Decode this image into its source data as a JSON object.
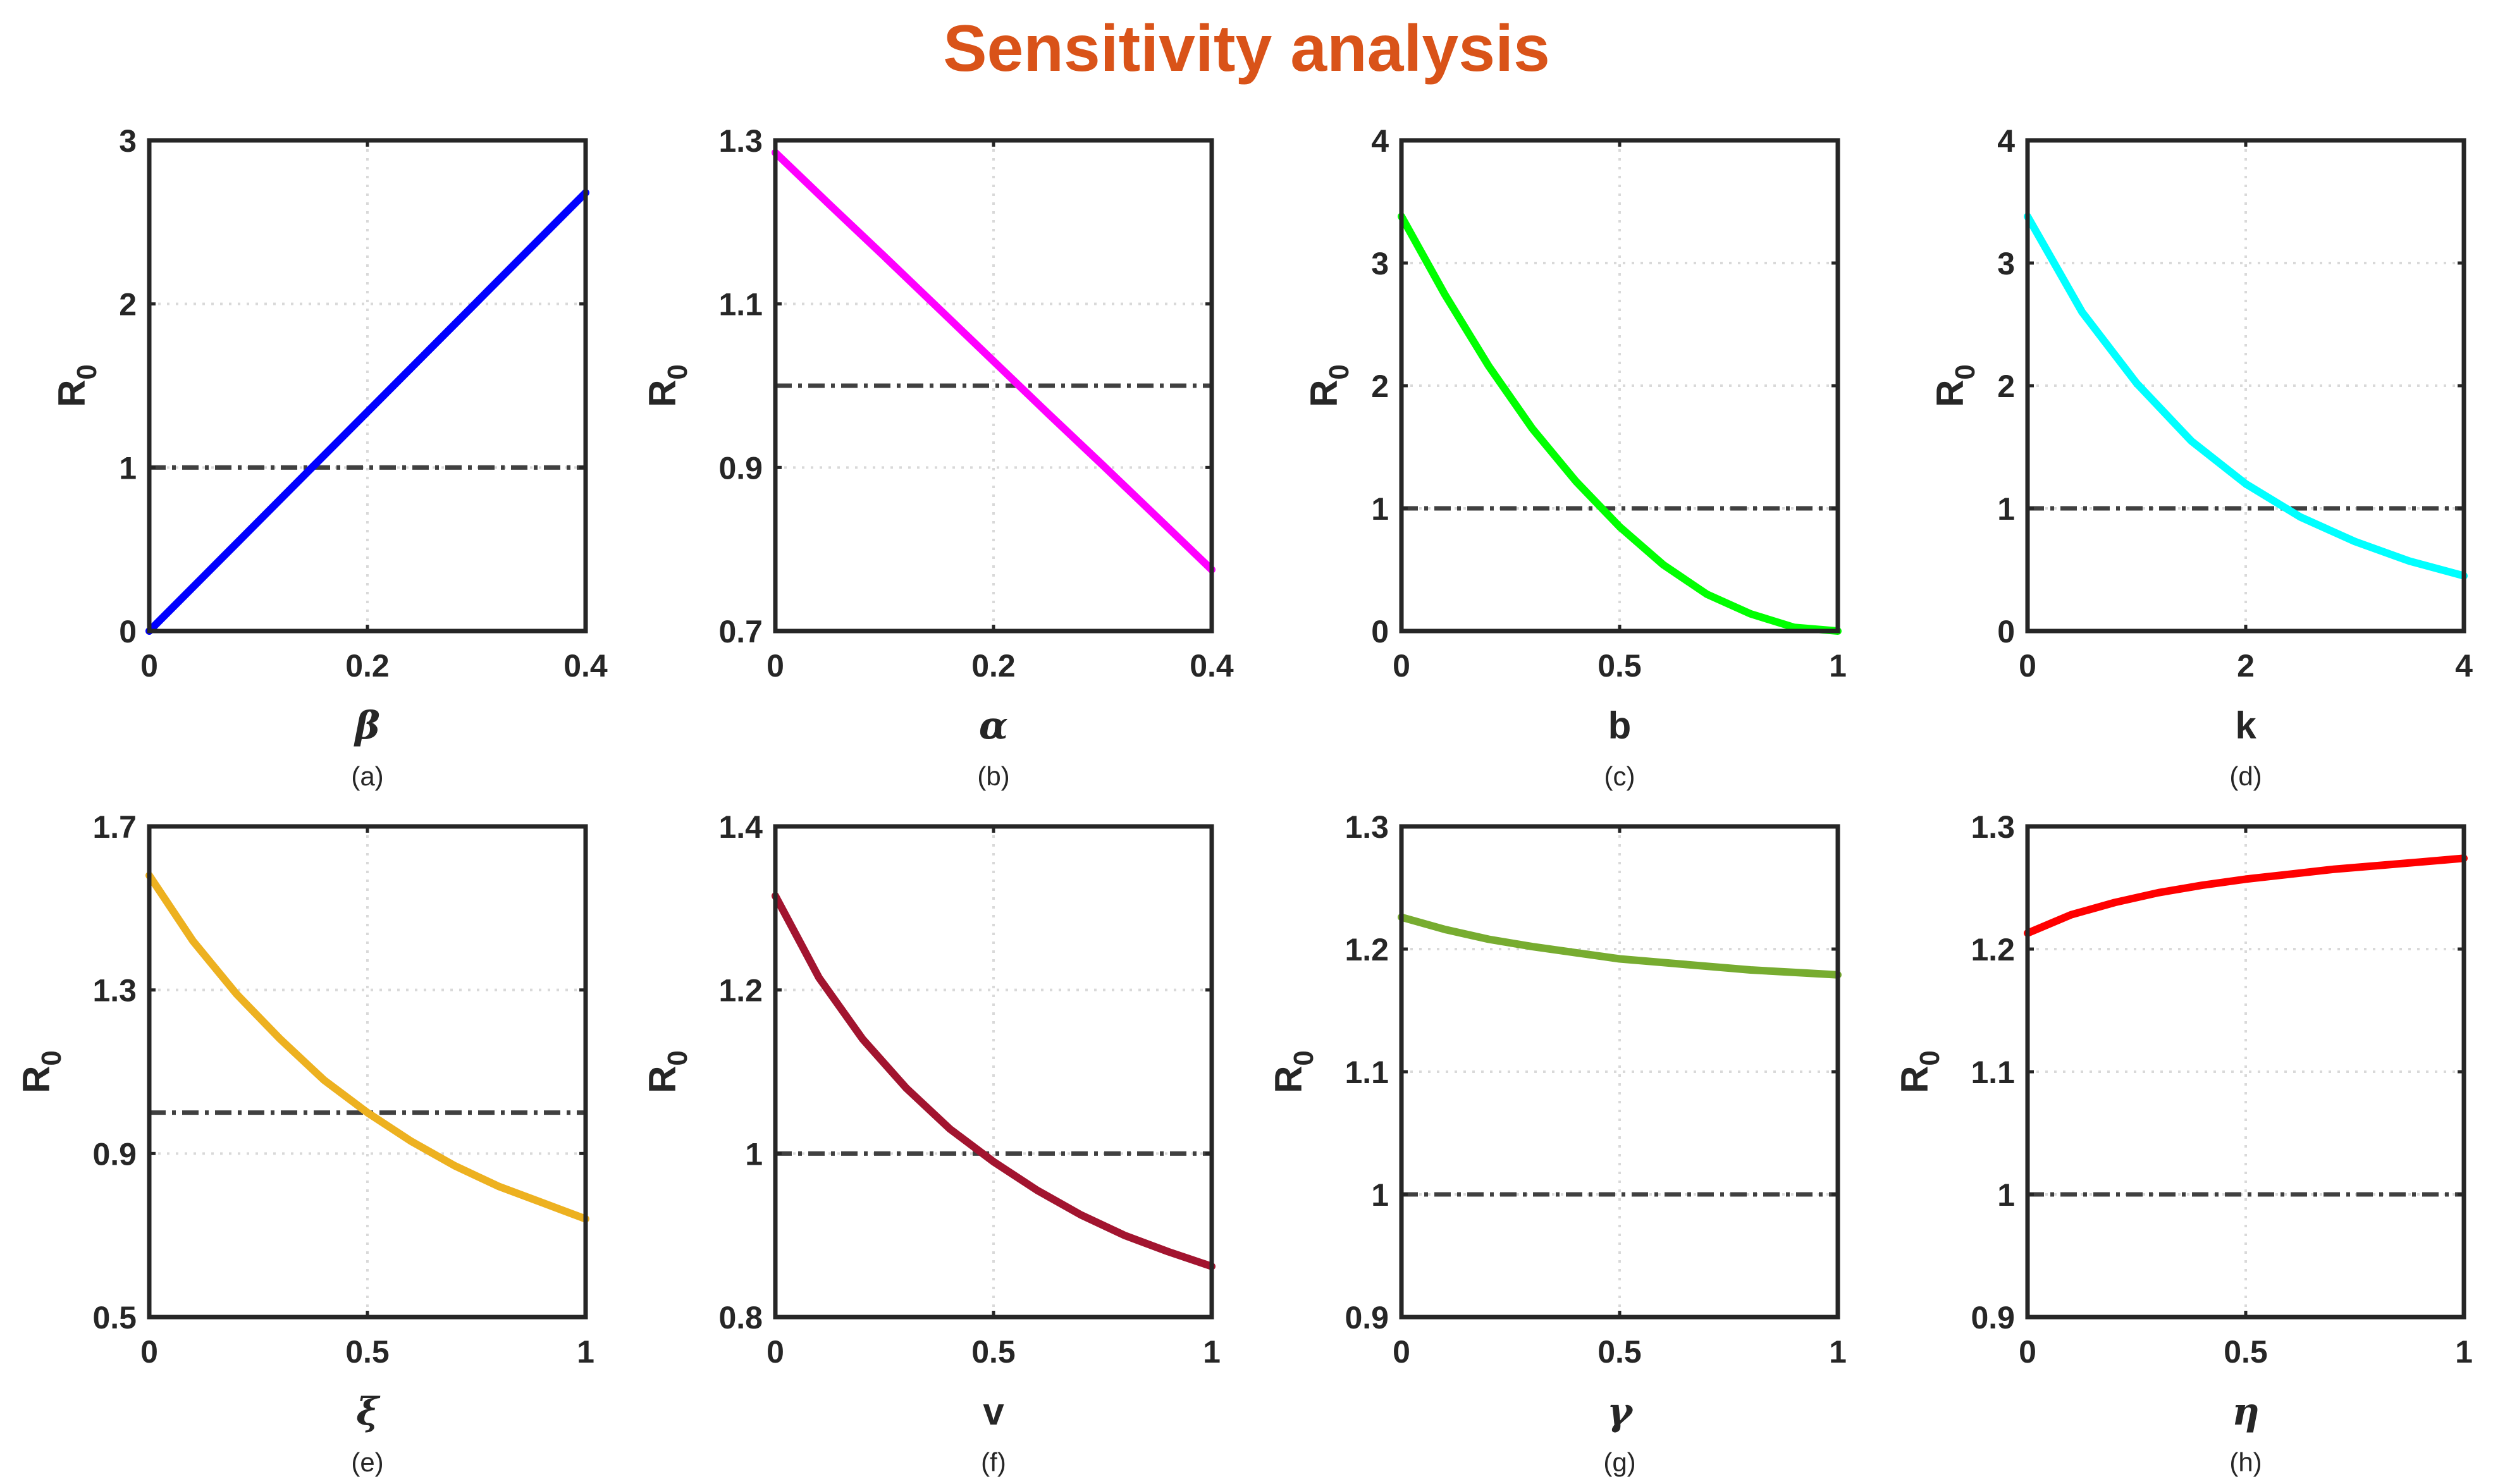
{
  "title": "Sensitivity analysis",
  "ylabel": "R",
  "ylabel_sub": "0",
  "colors": {
    "title": "#D95319",
    "threshold": "#404040",
    "grid": "#d9d9d9",
    "axes": "#262626"
  },
  "chart_data": [
    {
      "type": "line",
      "caption": "(a)",
      "xlabel": "β",
      "xlabel_italic": true,
      "color": "#0000FF",
      "xlim": [
        0,
        0.4
      ],
      "ylim": [
        0,
        3
      ],
      "xticks": [
        0,
        0.2,
        0.4
      ],
      "yticks": [
        0,
        1,
        2,
        3
      ],
      "xtick_labels": [
        "0",
        "0.2",
        "0.4"
      ],
      "ytick_labels": [
        "0",
        "1",
        "2",
        "3"
      ],
      "threshold": 1,
      "x": [
        0,
        0.05,
        0.1,
        0.15,
        0.2,
        0.25,
        0.3,
        0.35,
        0.4
      ],
      "y": [
        0,
        0.335,
        0.67,
        1.005,
        1.34,
        1.675,
        2.01,
        2.345,
        2.68
      ]
    },
    {
      "type": "line",
      "caption": "(b)",
      "xlabel": "α",
      "xlabel_italic": true,
      "color": "#FF00FF",
      "xlim": [
        0,
        0.4
      ],
      "ylim": [
        0.7,
        1.3
      ],
      "xticks": [
        0,
        0.2,
        0.4
      ],
      "yticks": [
        0.7,
        0.9,
        1.1,
        1.3
      ],
      "xtick_labels": [
        "0",
        "0.2",
        "0.4"
      ],
      "ytick_labels": [
        "0.7",
        "0.9",
        "1.1",
        "1.3"
      ],
      "threshold": 1,
      "x": [
        0,
        0.05,
        0.1,
        0.15,
        0.2,
        0.25,
        0.3,
        0.35,
        0.4
      ],
      "y": [
        1.285,
        1.221,
        1.158,
        1.094,
        1.03,
        0.966,
        0.903,
        0.839,
        0.775
      ]
    },
    {
      "type": "line",
      "caption": "(c)",
      "xlabel": "b",
      "xlabel_italic": false,
      "color": "#00FF00",
      "xlim": [
        0,
        1
      ],
      "ylim": [
        0,
        4
      ],
      "xticks": [
        0,
        0.5,
        1
      ],
      "yticks": [
        0,
        1,
        2,
        3,
        4
      ],
      "xtick_labels": [
        "0",
        "0.5",
        "1"
      ],
      "ytick_labels": [
        "0",
        "1",
        "2",
        "3",
        "4"
      ],
      "threshold": 1,
      "x": [
        0,
        0.1,
        0.2,
        0.3,
        0.4,
        0.5,
        0.6,
        0.7,
        0.8,
        0.9,
        1
      ],
      "y": [
        3.38,
        2.74,
        2.16,
        1.65,
        1.22,
        0.85,
        0.54,
        0.3,
        0.14,
        0.03,
        0
      ]
    },
    {
      "type": "line",
      "caption": "(d)",
      "xlabel": "k",
      "xlabel_italic": false,
      "color": "#00FFFF",
      "xlim": [
        0,
        4
      ],
      "ylim": [
        0,
        4
      ],
      "xticks": [
        0,
        2,
        4
      ],
      "yticks": [
        0,
        1,
        2,
        3,
        4
      ],
      "xtick_labels": [
        "0",
        "2",
        "4"
      ],
      "ytick_labels": [
        "0",
        "1",
        "2",
        "3",
        "4"
      ],
      "threshold": 1,
      "x": [
        0,
        0.5,
        1,
        1.5,
        2,
        2.5,
        3,
        3.5,
        4
      ],
      "y": [
        3.38,
        2.6,
        2.02,
        1.55,
        1.2,
        0.93,
        0.73,
        0.57,
        0.45
      ]
    },
    {
      "type": "line",
      "caption": "(e)",
      "xlabel": "ξ",
      "xlabel_italic": true,
      "color": "#EDB120",
      "xlim": [
        0,
        1
      ],
      "ylim": [
        0.5,
        1.7
      ],
      "xticks": [
        0,
        0.5,
        1
      ],
      "yticks": [
        0.5,
        0.9,
        1.3,
        1.7
      ],
      "xtick_labels": [
        "0",
        "0.5",
        "1"
      ],
      "ytick_labels": [
        "0.5",
        "0.9",
        "1.3",
        "1.7"
      ],
      "threshold": 1,
      "x": [
        0,
        0.1,
        0.2,
        0.3,
        0.4,
        0.5,
        0.6,
        0.7,
        0.8,
        0.9,
        1
      ],
      "y": [
        1.58,
        1.42,
        1.29,
        1.18,
        1.08,
        1.0,
        0.93,
        0.87,
        0.82,
        0.78,
        0.74
      ]
    },
    {
      "type": "line",
      "caption": "(f)",
      "xlabel": "v",
      "xlabel_italic": false,
      "color": "#A2142F",
      "xlim": [
        0,
        1
      ],
      "ylim": [
        0.8,
        1.4
      ],
      "xticks": [
        0,
        0.5,
        1
      ],
      "yticks": [
        0.8,
        1,
        1.2,
        1.4
      ],
      "xtick_labels": [
        "0",
        "0.5",
        "1"
      ],
      "ytick_labels": [
        "0.8",
        "1",
        "1.2",
        "1.4"
      ],
      "threshold": 1,
      "x": [
        0,
        0.1,
        0.2,
        0.3,
        0.4,
        0.5,
        0.6,
        0.7,
        0.8,
        0.9,
        1
      ],
      "y": [
        1.315,
        1.215,
        1.14,
        1.08,
        1.03,
        0.99,
        0.955,
        0.925,
        0.9,
        0.88,
        0.862
      ]
    },
    {
      "type": "line",
      "caption": "(g)",
      "xlabel": "γ",
      "xlabel_italic": true,
      "color": "#77AC30",
      "xlim": [
        0,
        1
      ],
      "ylim": [
        0.9,
        1.3
      ],
      "xticks": [
        0,
        0.5,
        1
      ],
      "yticks": [
        0.9,
        1,
        1.1,
        1.2,
        1.3
      ],
      "xtick_labels": [
        "0",
        "0.5",
        "1"
      ],
      "ytick_labels": [
        "0.9",
        "1",
        "1.1",
        "1.2",
        "1.3"
      ],
      "threshold": 1,
      "x": [
        0,
        0.1,
        0.2,
        0.3,
        0.4,
        0.5,
        0.6,
        0.7,
        0.8,
        0.9,
        1
      ],
      "y": [
        1.226,
        1.216,
        1.208,
        1.202,
        1.197,
        1.192,
        1.189,
        1.186,
        1.183,
        1.181,
        1.179
      ]
    },
    {
      "type": "line",
      "caption": "(h)",
      "xlabel": "η",
      "xlabel_italic": true,
      "color": "#FF0000",
      "xlim": [
        0,
        1
      ],
      "ylim": [
        0.9,
        1.3
      ],
      "xticks": [
        0,
        0.5,
        1
      ],
      "yticks": [
        0.9,
        1,
        1.1,
        1.2,
        1.3
      ],
      "xtick_labels": [
        "0",
        "0.5",
        "1"
      ],
      "ytick_labels": [
        "0.9",
        "1",
        "1.1",
        "1.2",
        "1.3"
      ],
      "threshold": 1,
      "x": [
        0,
        0.1,
        0.2,
        0.3,
        0.4,
        0.5,
        0.6,
        0.7,
        0.8,
        0.9,
        1
      ],
      "y": [
        1.213,
        1.228,
        1.238,
        1.246,
        1.252,
        1.257,
        1.261,
        1.265,
        1.268,
        1.271,
        1.274
      ]
    }
  ]
}
